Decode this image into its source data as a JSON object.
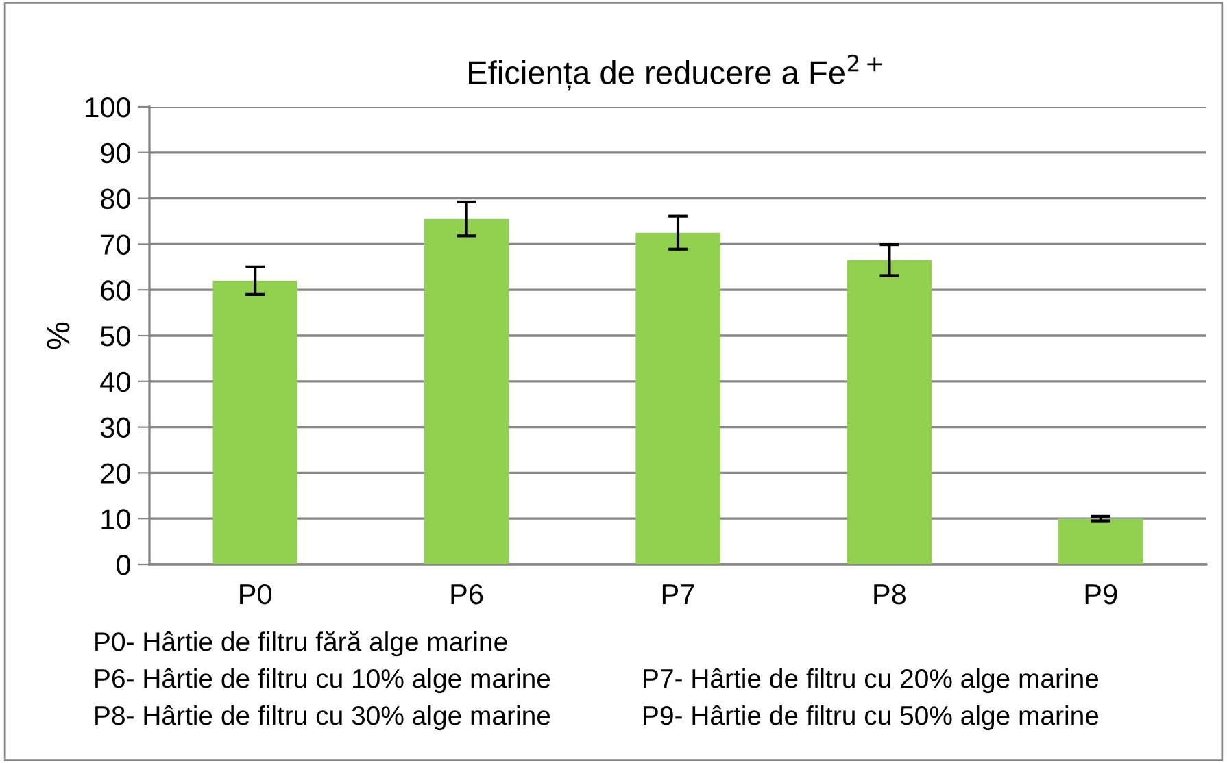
{
  "chart_data": {
    "type": "bar",
    "title": "Eficiența de reducere a Fe$^{2+}$",
    "ylabel": "%",
    "categories": [
      "P0",
      "P6",
      "P7",
      "P8",
      "P9"
    ],
    "values": [
      62,
      75.5,
      72.5,
      66.5,
      10
    ],
    "errors": [
      3,
      3.7,
      3.6,
      3.4,
      0.5
    ],
    "color": "#92d050",
    "ylim": [
      0,
      100
    ],
    "yticks": [
      0,
      10,
      20,
      30,
      40,
      50,
      60,
      70,
      80,
      90,
      100
    ],
    "grid": "y",
    "legend": false,
    "annotations": [
      "P0- Hârtie de filtru fără alge marine",
      "P6- Hârtie de filtru cu 10% alge marine",
      "P7- Hârtie de filtru cu 20% alge marine",
      "P8- Hârtie de filtru cu 30% alge marine",
      "P9- Hârtie de filtru cu 50% alge marine"
    ]
  }
}
